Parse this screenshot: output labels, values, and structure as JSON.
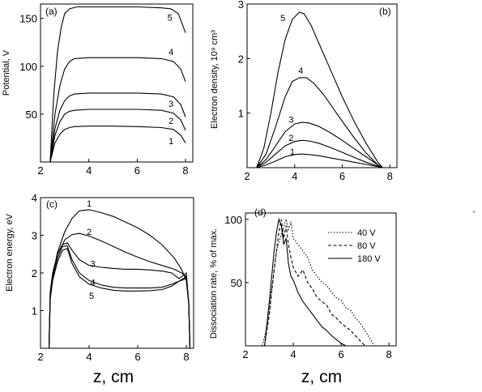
{
  "xlabel": "z, cm",
  "stray_mark": "`",
  "chart_data": [
    {
      "id": "a",
      "panel_label": "(a)",
      "type": "line",
      "ylabel": "Potential, V",
      "xlim": [
        2,
        8.3
      ],
      "ylim": [
        0,
        165
      ],
      "xticks": [
        2,
        4,
        6,
        8
      ],
      "yticks": [
        50,
        100,
        150
      ],
      "ytick_labels": [
        "50",
        "100",
        "150"
      ],
      "series": [
        {
          "label": "1",
          "label_at": [
            7.3,
            22
          ],
          "x": [
            2.4,
            2.6,
            2.8,
            3.0,
            3.2,
            3.4,
            4,
            5,
            6,
            7,
            7.5,
            7.8,
            8.0
          ],
          "y": [
            0,
            20,
            29,
            34,
            36,
            37,
            37.5,
            37.5,
            37,
            36,
            34,
            28,
            20
          ]
        },
        {
          "label": "2",
          "label_at": [
            7.3,
            43
          ],
          "x": [
            2.4,
            2.6,
            2.8,
            3.0,
            3.2,
            3.4,
            4,
            5,
            6,
            7,
            7.5,
            7.8,
            8.0
          ],
          "y": [
            0,
            28,
            42,
            50,
            53,
            54,
            55,
            55,
            55,
            54,
            51,
            44,
            33
          ]
        },
        {
          "label": "3",
          "label_at": [
            7.3,
            61
          ],
          "x": [
            2.4,
            2.6,
            2.8,
            3.0,
            3.2,
            3.4,
            4,
            5,
            6,
            7,
            7.5,
            7.8,
            8.0
          ],
          "y": [
            0,
            35,
            54,
            64,
            69,
            71,
            72,
            72,
            72,
            71,
            68,
            60,
            47
          ]
        },
        {
          "label": "4",
          "label_at": [
            7.3,
            115
          ],
          "x": [
            2.4,
            2.6,
            2.8,
            3.0,
            3.2,
            3.4,
            4,
            5,
            6,
            7,
            7.5,
            7.8,
            8.0
          ],
          "y": [
            0,
            50,
            80,
            97,
            105,
            108,
            109,
            109,
            109,
            108,
            105,
            97,
            84
          ]
        },
        {
          "label": "5",
          "label_at": [
            7.25,
            151
          ],
          "x": [
            2.4,
            2.55,
            2.7,
            2.85,
            3.0,
            3.2,
            3.5,
            4,
            5,
            6,
            7,
            7.4,
            7.7,
            8.0
          ],
          "y": [
            0,
            70,
            115,
            140,
            155,
            160,
            162,
            162,
            162,
            162,
            161,
            160,
            155,
            135
          ]
        }
      ]
    },
    {
      "id": "b",
      "panel_label": "(b)",
      "type": "line",
      "ylabel": "Electron density, 10⁹ cm³",
      "xlim": [
        2,
        8.3
      ],
      "ylim": [
        0,
        3
      ],
      "xticks": [
        2,
        4,
        6,
        8
      ],
      "yticks": [
        1,
        2,
        3
      ],
      "ytick_labels": [
        "1",
        "2",
        "3"
      ],
      "series": [
        {
          "label": "1",
          "label_at": [
            3.8,
            0.3
          ],
          "x": [
            2.4,
            2.8,
            3.2,
            3.6,
            4.0,
            4.3,
            4.6,
            5.0,
            5.5,
            6.0,
            6.5,
            7.0,
            7.5,
            7.7
          ],
          "y": [
            0,
            0.05,
            0.12,
            0.2,
            0.24,
            0.25,
            0.24,
            0.22,
            0.18,
            0.14,
            0.1,
            0.06,
            0.02,
            0
          ]
        },
        {
          "label": "2",
          "label_at": [
            3.75,
            0.55
          ],
          "x": [
            2.4,
            2.8,
            3.2,
            3.6,
            4.0,
            4.3,
            4.6,
            5.0,
            5.5,
            6.0,
            6.5,
            7.0,
            7.5,
            7.7
          ],
          "y": [
            0,
            0.1,
            0.25,
            0.4,
            0.48,
            0.5,
            0.49,
            0.45,
            0.37,
            0.28,
            0.19,
            0.1,
            0.03,
            0
          ]
        },
        {
          "label": "3",
          "label_at": [
            3.75,
            0.88
          ],
          "x": [
            2.4,
            2.8,
            3.2,
            3.6,
            4.0,
            4.3,
            4.6,
            5.0,
            5.5,
            6.0,
            6.5,
            7.0,
            7.5,
            7.7
          ],
          "y": [
            0,
            0.15,
            0.4,
            0.66,
            0.8,
            0.83,
            0.82,
            0.76,
            0.64,
            0.5,
            0.35,
            0.2,
            0.05,
            0
          ]
        },
        {
          "label": "4",
          "label_at": [
            4.15,
            1.78
          ],
          "x": [
            2.4,
            2.8,
            3.2,
            3.6,
            3.9,
            4.2,
            4.5,
            4.8,
            5.2,
            5.6,
            6.0,
            6.5,
            7.0,
            7.5,
            7.7
          ],
          "y": [
            0,
            0.25,
            0.75,
            1.3,
            1.58,
            1.65,
            1.65,
            1.55,
            1.35,
            1.1,
            0.85,
            0.55,
            0.27,
            0.05,
            0
          ]
        },
        {
          "label": "5",
          "label_at": [
            3.4,
            2.75
          ],
          "x": [
            2.4,
            2.7,
            3.0,
            3.3,
            3.6,
            3.9,
            4.2,
            4.4,
            4.7,
            5.0,
            5.5,
            6.0,
            6.5,
            7.0,
            7.5,
            7.7
          ],
          "y": [
            0,
            0.35,
            1.0,
            1.75,
            2.35,
            2.72,
            2.85,
            2.82,
            2.6,
            2.3,
            1.8,
            1.3,
            0.85,
            0.45,
            0.1,
            0
          ]
        }
      ]
    },
    {
      "id": "c",
      "panel_label": "(c)",
      "type": "line",
      "ylabel": "Electron energy,  eV",
      "xlim": [
        2,
        8.3
      ],
      "ylim": [
        0,
        4
      ],
      "xticks": [
        2,
        4,
        6,
        8
      ],
      "yticks": [
        1,
        2,
        3,
        4
      ],
      "ytick_labels": [
        "1",
        "2",
        "3",
        "4"
      ],
      "series": [
        {
          "label": "1",
          "label_at": [
            3.9,
            3.85
          ],
          "x": [
            2.35,
            2.4,
            2.5,
            2.7,
            3.0,
            3.3,
            3.6,
            4.0,
            4.5,
            5.0,
            5.5,
            6.0,
            6.5,
            7.0,
            7.5,
            7.8,
            8.0,
            8.1,
            8.15
          ],
          "y": [
            0,
            1.4,
            1.9,
            2.55,
            3.1,
            3.45,
            3.65,
            3.68,
            3.6,
            3.5,
            3.35,
            3.2,
            3.0,
            2.75,
            2.4,
            2.1,
            1.8,
            1.2,
            0
          ]
        },
        {
          "label": "2",
          "label_at": [
            3.9,
            3.1
          ],
          "x": [
            2.35,
            2.4,
            2.5,
            2.7,
            3.0,
            3.3,
            3.6,
            4.0,
            4.5,
            5.0,
            5.5,
            6.0,
            6.5,
            7.0,
            7.5,
            7.8,
            8.0,
            8.1,
            8.15
          ],
          "y": [
            0,
            1.4,
            1.85,
            2.5,
            2.88,
            3.02,
            3.05,
            2.98,
            2.85,
            2.7,
            2.55,
            2.42,
            2.3,
            2.2,
            2.1,
            2.0,
            1.9,
            1.2,
            0
          ]
        },
        {
          "label": "3",
          "label_at": [
            4.05,
            2.25
          ],
          "x": [
            2.35,
            2.4,
            2.5,
            2.7,
            2.9,
            3.1,
            3.3,
            3.6,
            4.0,
            4.5,
            5.0,
            5.5,
            6.0,
            6.5,
            7.0,
            7.4,
            7.7,
            8.0,
            8.1,
            8.15
          ],
          "y": [
            0,
            1.5,
            2.0,
            2.5,
            2.75,
            2.8,
            2.6,
            2.35,
            2.2,
            2.15,
            2.12,
            2.1,
            2.1,
            2.08,
            2.05,
            2.0,
            1.85,
            2.0,
            1.2,
            0
          ]
        },
        {
          "label": "4",
          "label_at": [
            4.05,
            1.75
          ],
          "x": [
            2.35,
            2.4,
            2.5,
            2.7,
            2.9,
            3.1,
            3.3,
            3.6,
            4.0,
            4.5,
            5.0,
            5.5,
            6.0,
            6.5,
            7.0,
            7.4,
            7.7,
            8.0,
            8.1,
            8.15
          ],
          "y": [
            0,
            1.4,
            1.9,
            2.4,
            2.7,
            2.72,
            2.35,
            2.0,
            1.8,
            1.68,
            1.62,
            1.6,
            1.6,
            1.6,
            1.62,
            1.7,
            1.78,
            1.9,
            1.2,
            0
          ]
        },
        {
          "label": "5",
          "label_at": [
            4.0,
            1.4
          ],
          "x": [
            2.35,
            2.4,
            2.5,
            2.7,
            2.9,
            3.1,
            3.3,
            3.6,
            4.0,
            4.5,
            5.0,
            5.5,
            6.0,
            6.5,
            7.0,
            7.4,
            7.7,
            8.0,
            8.1,
            8.15
          ],
          "y": [
            0,
            1.3,
            1.8,
            2.3,
            2.6,
            2.65,
            2.25,
            1.9,
            1.7,
            1.6,
            1.54,
            1.52,
            1.52,
            1.53,
            1.56,
            1.65,
            1.78,
            1.85,
            1.2,
            0
          ]
        }
      ]
    },
    {
      "id": "d",
      "panel_label": "(d)",
      "type": "line",
      "ylabel": "Dissociation rate, % of max.",
      "xlim": [
        2,
        8.3
      ],
      "ylim": [
        0,
        105
      ],
      "xticks": [
        2,
        4,
        6,
        8
      ],
      "yticks": [
        50,
        100
      ],
      "ytick_labels": [
        "50",
        "100"
      ],
      "legend_position": "top-right",
      "series": [
        {
          "name": "40 V",
          "style": "dotted",
          "x": [
            2.7,
            2.9,
            3.1,
            3.3,
            3.5,
            3.7,
            3.8,
            3.9,
            4.0,
            4.2,
            4.4,
            4.6,
            4.8,
            5.0,
            5.2,
            5.4,
            5.6,
            5.8,
            6.0,
            6.2,
            6.4,
            6.6,
            6.8,
            7.0,
            7.2,
            7.4
          ],
          "y": [
            0,
            15,
            45,
            75,
            88,
            100,
            92,
            98,
            85,
            80,
            75,
            70,
            60,
            55,
            50,
            48,
            42,
            38,
            36,
            30,
            28,
            22,
            18,
            12,
            6,
            0
          ]
        },
        {
          "name": "80 V",
          "style": "dashed",
          "x": [
            2.8,
            3.0,
            3.2,
            3.4,
            3.5,
            3.6,
            3.7,
            3.8,
            3.9,
            4.0,
            4.2,
            4.4,
            4.6,
            4.8,
            5.0,
            5.2,
            5.4,
            5.6,
            5.8,
            6.0,
            6.2,
            6.4,
            6.6,
            6.8,
            7.0
          ],
          "y": [
            0,
            25,
            60,
            90,
            100,
            85,
            95,
            80,
            70,
            62,
            55,
            60,
            50,
            45,
            38,
            35,
            32,
            25,
            22,
            18,
            15,
            12,
            8,
            4,
            0
          ]
        },
        {
          "name": "180 V",
          "style": "solid",
          "x": [
            2.8,
            3.0,
            3.2,
            3.3,
            3.4,
            3.5,
            3.6,
            3.7,
            3.8,
            3.9,
            4.0,
            4.2,
            4.4,
            4.6,
            4.8,
            5.0,
            5.2,
            5.4,
            5.6,
            5.8,
            6.0,
            6.2
          ],
          "y": [
            0,
            35,
            75,
            90,
            100,
            95,
            80,
            85,
            65,
            55,
            52,
            42,
            35,
            30,
            25,
            20,
            15,
            12,
            8,
            5,
            2,
            0
          ]
        }
      ]
    }
  ]
}
